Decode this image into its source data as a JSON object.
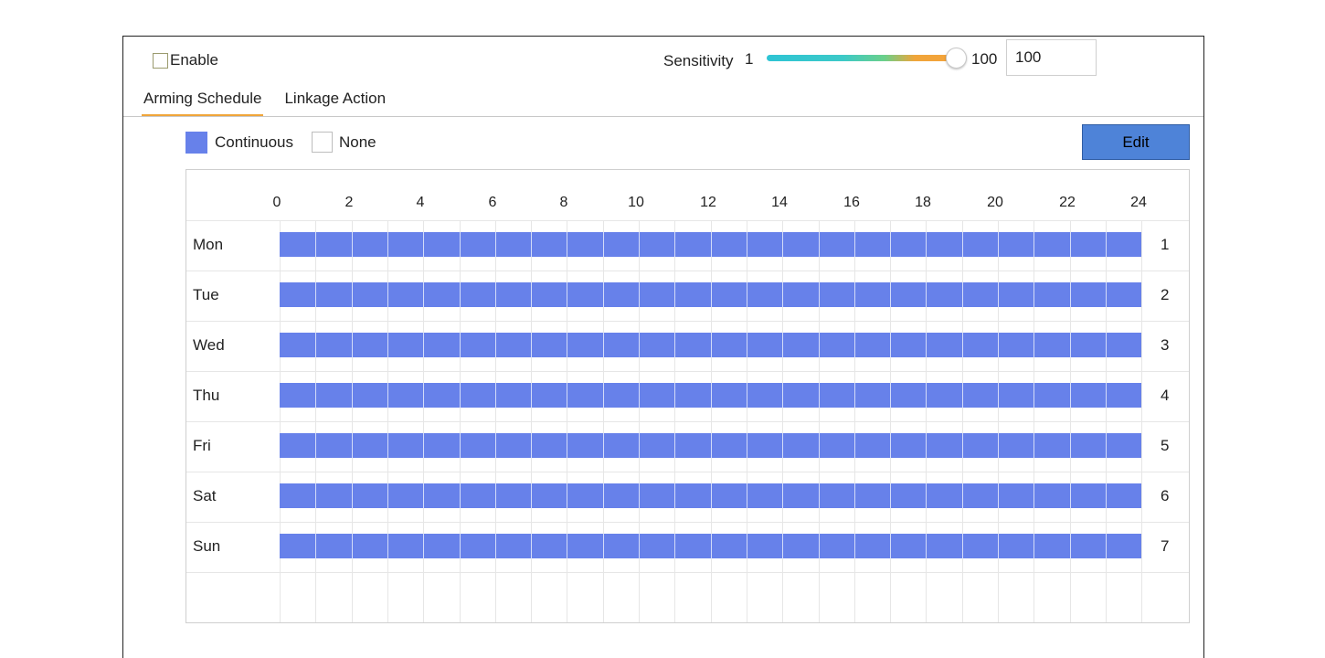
{
  "header": {
    "enable_label": "Enable",
    "enable_checked": false,
    "sensitivity_label": "Sensitivity",
    "sensitivity_min": "1",
    "sensitivity_max": "100",
    "sensitivity_value": "100"
  },
  "tabs": [
    {
      "label": "Arming Schedule",
      "active": true
    },
    {
      "label": "Linkage Action",
      "active": false
    }
  ],
  "legend": {
    "continuous_label": "Continuous",
    "none_label": "None"
  },
  "edit_label": "Edit",
  "schedule": {
    "hour_labels": [
      "0",
      "2",
      "4",
      "6",
      "8",
      "10",
      "12",
      "14",
      "16",
      "18",
      "20",
      "22",
      "24"
    ],
    "days": [
      {
        "label": "Mon",
        "num": "1",
        "start": 0,
        "end": 24
      },
      {
        "label": "Tue",
        "num": "2",
        "start": 0,
        "end": 24
      },
      {
        "label": "Wed",
        "num": "3",
        "start": 0,
        "end": 24
      },
      {
        "label": "Thu",
        "num": "4",
        "start": 0,
        "end": 24
      },
      {
        "label": "Fri",
        "num": "5",
        "start": 0,
        "end": 24
      },
      {
        "label": "Sat",
        "num": "6",
        "start": 0,
        "end": 24
      },
      {
        "label": "Sun",
        "num": "7",
        "start": 0,
        "end": 24
      }
    ]
  },
  "colors": {
    "continuous": "#6781ea",
    "accent": "#f0a53a",
    "edit_button": "#4e83d8"
  }
}
